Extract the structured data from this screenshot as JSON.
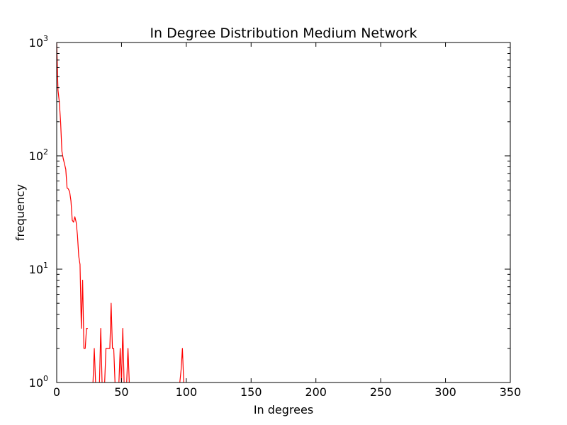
{
  "chart_data": {
    "type": "line",
    "title": "In Degree Distribution Medium Network",
    "xlabel": "In degrees",
    "ylabel": "frequency",
    "xlim": [
      0,
      350
    ],
    "ylim": [
      1,
      1000
    ],
    "yscale": "log",
    "grid": false,
    "x_ticks": [
      0,
      50,
      100,
      150,
      200,
      250,
      300,
      350
    ],
    "x_tick_labels": [
      "0",
      "50",
      "100",
      "150",
      "200",
      "250",
      "300",
      "350"
    ],
    "y_ticks": [
      1,
      10,
      100,
      1000
    ],
    "y_tick_labels": [
      {
        "base": "10",
        "exp": "0"
      },
      {
        "base": "10",
        "exp": "1"
      },
      {
        "base": "10",
        "exp": "2"
      },
      {
        "base": "10",
        "exp": "3"
      }
    ],
    "series": [
      {
        "color": "#ff0000",
        "segments": [
          [
            [
              0,
              1000
            ],
            [
              1,
              380
            ],
            [
              2,
              300
            ],
            [
              3,
              200
            ],
            [
              4,
              110
            ],
            [
              5,
              95
            ],
            [
              6,
              85
            ],
            [
              7,
              76
            ],
            [
              8,
              52
            ],
            [
              9,
              51
            ],
            [
              10,
              48
            ],
            [
              11,
              40
            ],
            [
              12,
              27
            ],
            [
              13,
              26
            ],
            [
              14,
              29
            ],
            [
              15,
              26
            ],
            [
              16,
              20
            ],
            [
              17,
              13
            ],
            [
              18,
              11
            ],
            [
              19,
              3
            ],
            [
              20,
              8
            ],
            [
              21,
              2
            ],
            [
              22,
              2
            ],
            [
              23,
              3
            ],
            [
              24,
              3
            ]
          ],
          [
            [
              28,
              1
            ],
            [
              29,
              2
            ],
            [
              30,
              1
            ]
          ],
          [
            [
              33,
              1
            ],
            [
              34,
              3
            ],
            [
              35,
              1
            ]
          ],
          [
            [
              37,
              1
            ],
            [
              38,
              2
            ],
            [
              39,
              2
            ],
            [
              40,
              2
            ],
            [
              41,
              2
            ],
            [
              42,
              5
            ],
            [
              43,
              2
            ],
            [
              44,
              2
            ],
            [
              45,
              1
            ]
          ],
          [
            [
              48,
              1
            ],
            [
              49,
              2
            ],
            [
              50,
              1
            ],
            [
              51,
              3
            ],
            [
              52,
              1
            ]
          ],
          [
            [
              54,
              1
            ],
            [
              55,
              2
            ],
            [
              56,
              1
            ]
          ],
          [
            [
              95,
              1
            ],
            [
              96,
              1.3
            ],
            [
              97,
              2
            ],
            [
              98,
              1
            ]
          ]
        ]
      }
    ]
  }
}
